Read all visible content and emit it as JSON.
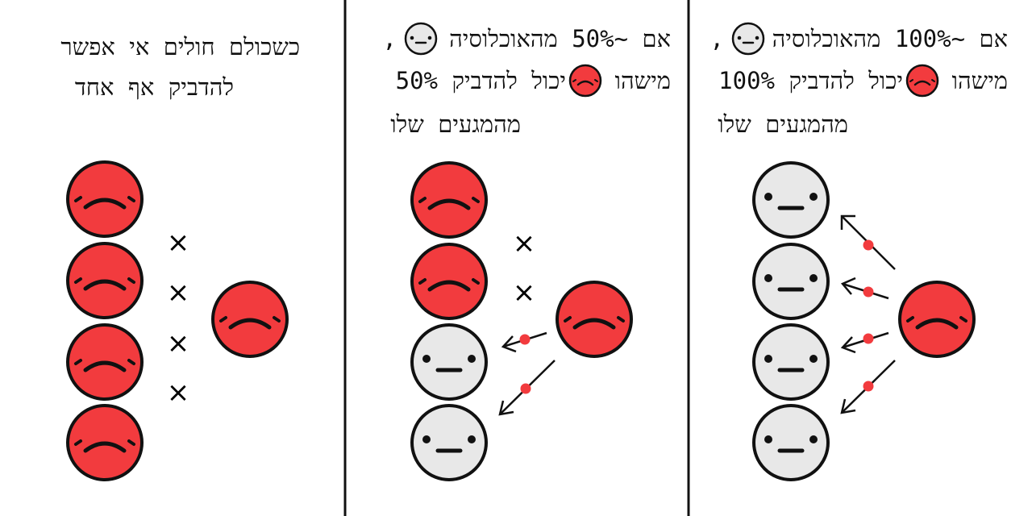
{
  "panels": [
    {
      "caption_lines": [
        "כשכולם חולים אי אפשר",
        "להדביק אף אחד"
      ],
      "blocked_marker": "×"
    },
    {
      "caption": {
        "line1": {
          "lead": "אם ~50% מהאוכלוסיה",
          "trail": ","
        },
        "line2": {
          "lead": "מישהו",
          "trail": "יכול להדביק 50%"
        },
        "line3": "מהמגעים שלו"
      },
      "blocked_marker": "×"
    },
    {
      "caption": {
        "line1": {
          "lead": "אם ~100% מהאוכלוסיה",
          "trail": ","
        },
        "line2": {
          "lead": "מישהו",
          "trail": "יכול להדביק 100%"
        },
        "line3": "מהמגעים שלו"
      }
    }
  ],
  "colors": {
    "sick": "#f23b3e",
    "healthy": "#e8e8e8",
    "transmission_dot": "#f23b3e",
    "outline": "#111111"
  },
  "icons": {
    "sick_face": "sad-face-icon",
    "healthy_face": "neutral-face-icon",
    "blocked": "x-mark-icon",
    "transmission": "arrow-icon"
  }
}
